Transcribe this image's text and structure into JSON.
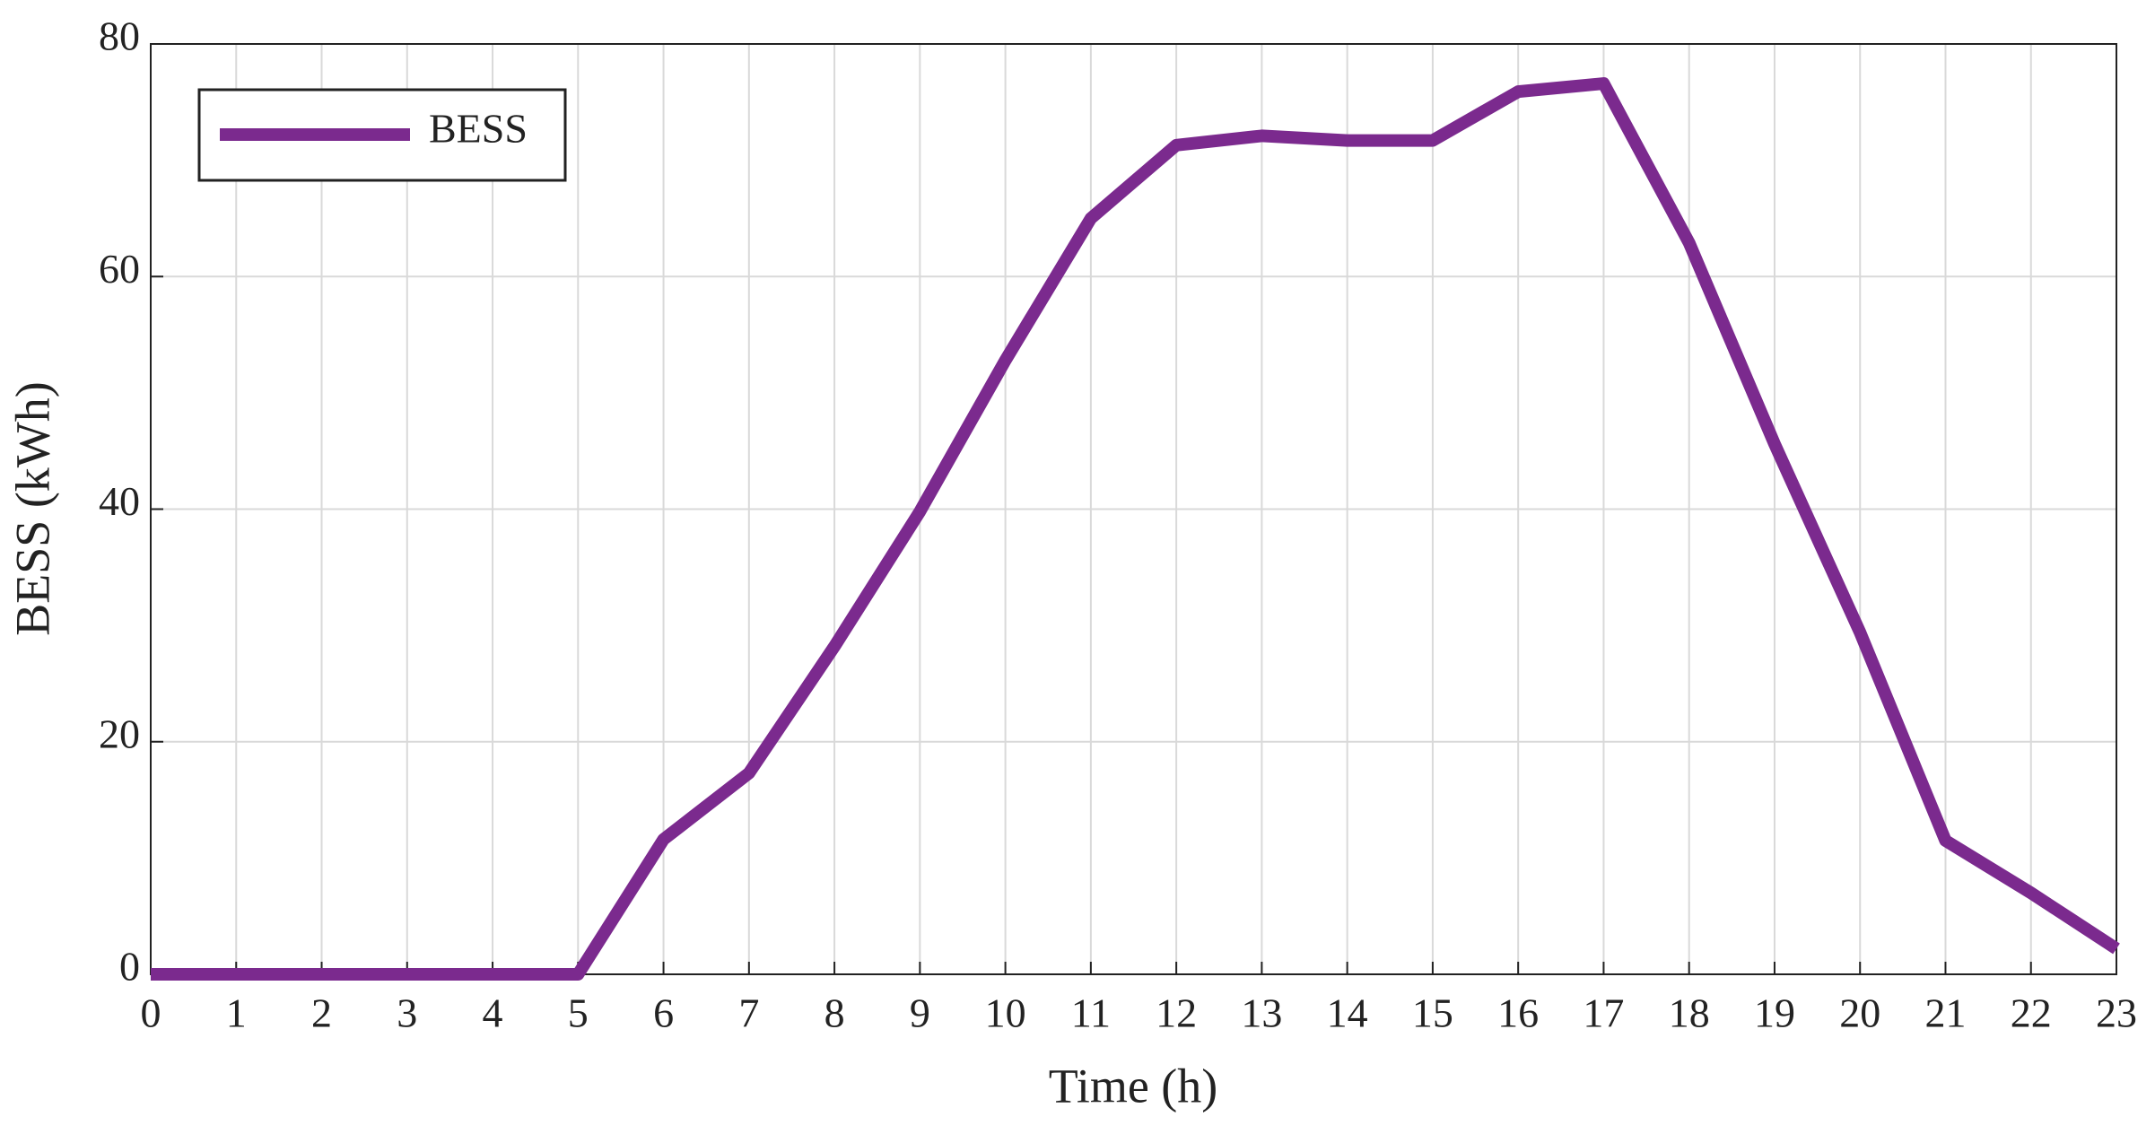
{
  "chart_data": {
    "type": "line",
    "x": [
      0,
      1,
      2,
      3,
      4,
      5,
      6,
      7,
      8,
      9,
      10,
      11,
      12,
      13,
      14,
      15,
      16,
      17,
      18,
      19,
      20,
      21,
      22,
      23
    ],
    "series": [
      {
        "name": "BESS",
        "color": "#7b2a8e",
        "values": [
          0,
          0,
          0,
          0,
          0,
          0,
          11.6,
          17.3,
          28.2,
          39.8,
          52.8,
          65,
          71.3,
          72.1,
          71.7,
          71.7,
          75.9,
          76.6,
          62.9,
          45.6,
          29.4,
          11.5,
          7,
          2.2
        ]
      }
    ],
    "xlabel": "Time (h)",
    "ylabel": "BESS (kWh)",
    "xlim": [
      0,
      23
    ],
    "ylim": [
      0,
      80
    ],
    "xticks": [
      0,
      1,
      2,
      3,
      4,
      5,
      6,
      7,
      8,
      9,
      10,
      11,
      12,
      13,
      14,
      15,
      16,
      17,
      18,
      19,
      20,
      21,
      22,
      23
    ],
    "yticks": [
      0,
      20,
      40,
      60,
      80
    ],
    "grid": true,
    "legend": "upper left"
  }
}
